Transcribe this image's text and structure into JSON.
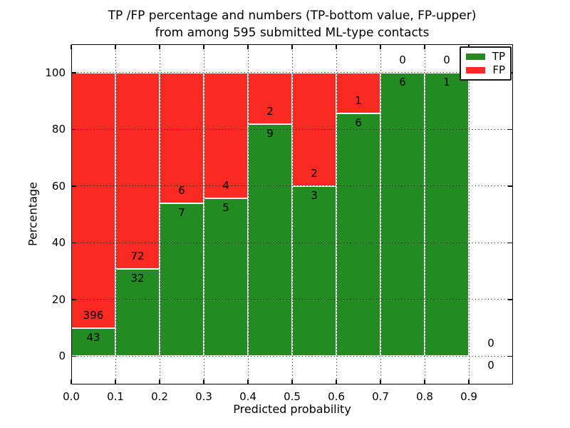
{
  "title": {
    "line1": "TP /FP percentage and numbers (TP-bottom value, FP-upper)",
    "line2": "from among 595 submitted ML-type contacts"
  },
  "chart_data": {
    "type": "bar",
    "stacked": true,
    "title": "TP /FP percentage and numbers (TP-bottom value, FP-upper)\nfrom among 595 submitted ML-type contacts",
    "xlabel": "Predicted probability",
    "ylabel": "Percentage",
    "xlim": [
      0.0,
      1.0
    ],
    "ylim": [
      -10,
      110
    ],
    "x_tick_values": [
      0.0,
      0.1,
      0.2,
      0.3,
      0.4,
      0.5,
      0.6,
      0.7,
      0.8,
      0.9
    ],
    "x_tick_labels": [
      "0.0",
      "0.1",
      "0.2",
      "0.3",
      "0.4",
      "0.5",
      "0.6",
      "0.7",
      "0.8",
      "0.9"
    ],
    "y_tick_values": [
      0,
      20,
      40,
      60,
      80,
      100
    ],
    "y_tick_labels": [
      "0",
      "20",
      "40",
      "60",
      "80",
      "100"
    ],
    "grid": "dotted",
    "colors": {
      "tp": "#228B22",
      "fp": "#F82A21",
      "grid": "#000000",
      "background": "#ffffff"
    },
    "legend": {
      "position": "upper-right",
      "entries": [
        {
          "label": "TP",
          "color": "#228B22"
        },
        {
          "label": "FP",
          "color": "#F82A21"
        }
      ]
    },
    "bins": [
      {
        "x_start": 0.0,
        "x_end": 0.1,
        "tp": 43,
        "fp": 396
      },
      {
        "x_start": 0.1,
        "x_end": 0.2,
        "tp": 32,
        "fp": 72
      },
      {
        "x_start": 0.2,
        "x_end": 0.3,
        "tp": 7,
        "fp": 6
      },
      {
        "x_start": 0.3,
        "x_end": 0.4,
        "tp": 5,
        "fp": 4
      },
      {
        "x_start": 0.4,
        "x_end": 0.5,
        "tp": 9,
        "fp": 2
      },
      {
        "x_start": 0.5,
        "x_end": 0.6,
        "tp": 3,
        "fp": 2
      },
      {
        "x_start": 0.6,
        "x_end": 0.7,
        "tp": 6,
        "fp": 1
      },
      {
        "x_start": 0.7,
        "x_end": 0.8,
        "tp": 6,
        "fp": 0
      },
      {
        "x_start": 0.8,
        "x_end": 0.9,
        "tp": 1,
        "fp": 0
      },
      {
        "x_start": 0.9,
        "x_end": 1.0,
        "tp": 0,
        "fp": 0
      }
    ]
  }
}
